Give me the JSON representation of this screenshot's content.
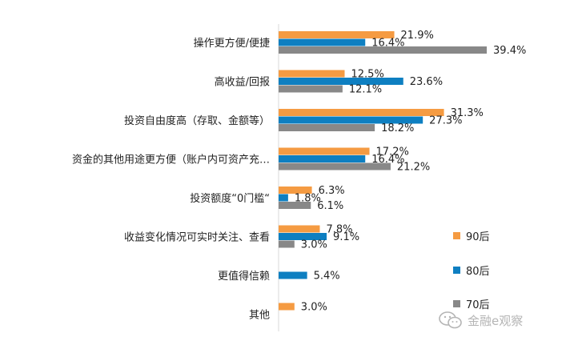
{
  "chart_data": {
    "type": "bar",
    "orientation": "horizontal",
    "categories": [
      "操作更方便/便捷",
      "高收益/回报",
      "投资自由度高（存取、金额等）",
      "资金的其他用途更方便（账户内可资产充…",
      "投资额度“0门槛“",
      "收益变化情况可实时关注、查看",
      "更值得信赖",
      "其他"
    ],
    "series": [
      {
        "name": "90后",
        "color": "#F59B42",
        "values": [
          21.9,
          12.5,
          31.3,
          17.2,
          6.3,
          7.8,
          null,
          3.0
        ],
        "labels": [
          "21.9%",
          "12.5%",
          "31.3%",
          "17.2%",
          "6.3%",
          "7.8%",
          "",
          "3.0%"
        ]
      },
      {
        "name": "80后",
        "color": "#0E7FC1",
        "values": [
          16.4,
          23.6,
          27.3,
          16.4,
          1.8,
          9.1,
          5.4,
          null
        ],
        "labels": [
          "16.4%",
          "23.6%",
          "27.3%",
          "16.4%",
          "1.8%",
          "9.1%",
          "5.4%",
          ""
        ]
      },
      {
        "name": "70后",
        "color": "#888888",
        "values": [
          39.4,
          12.1,
          18.2,
          21.2,
          6.1,
          3.0,
          null,
          null
        ],
        "labels": [
          "39.4%",
          "12.1%",
          "18.2%",
          "21.2%",
          "6.1%",
          "3.0%",
          "",
          ""
        ]
      }
    ],
    "xlim": [
      0,
      40
    ],
    "grid": false,
    "legend": "bottom-right"
  },
  "watermark": {
    "text": "金融e观察",
    "icon": "wechat-icon"
  }
}
